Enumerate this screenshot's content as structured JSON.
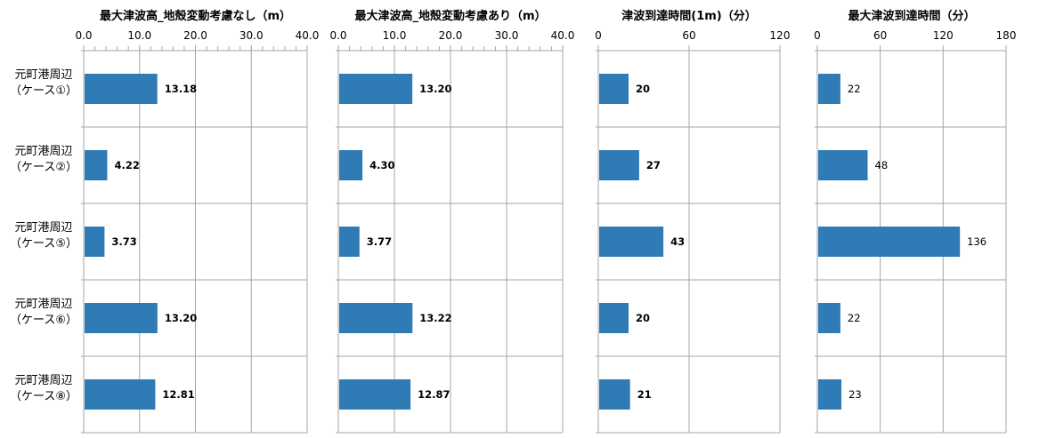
{
  "colors": {
    "bar": "#2f7bb6",
    "grid": "#a6a6a6",
    "minor_grid": "#d9d9d9",
    "text": "#000000"
  },
  "chart_data": [
    {
      "type": "bar",
      "orientation": "horizontal",
      "title": "最大津波高_地殻変動考慮なし（m）",
      "categories": [
        [
          "元町港周辺",
          "（ケース①）"
        ],
        [
          "元町港周辺",
          "（ケース②）"
        ],
        [
          "元町港周辺",
          "（ケース⑤）"
        ],
        [
          "元町港周辺",
          "（ケース⑥）"
        ],
        [
          "元町港周辺",
          "（ケース⑧）"
        ]
      ],
      "values": [
        13.18,
        4.22,
        3.73,
        13.2,
        12.81
      ],
      "value_labels": [
        "13.18",
        "4.22",
        "3.73",
        "13.20",
        "12.81"
      ],
      "xlim": [
        0,
        40
      ],
      "ticks": [
        0,
        10,
        20,
        30,
        40
      ],
      "tick_labels": [
        "0.0",
        "10.0",
        "20.0",
        "30.0",
        "40.0"
      ],
      "minor_ticks": true,
      "value_label_bold": true,
      "grid": true
    },
    {
      "type": "bar",
      "orientation": "horizontal",
      "title": "最大津波高_地殻変動考慮あり（m）",
      "values": [
        13.2,
        4.3,
        3.77,
        13.22,
        12.87
      ],
      "value_labels": [
        "13.20",
        "4.30",
        "3.77",
        "13.22",
        "12.87"
      ],
      "xlim": [
        0,
        40
      ],
      "ticks": [
        0,
        10,
        20,
        30,
        40
      ],
      "tick_labels": [
        "0.0",
        "10.0",
        "20.0",
        "30.0",
        "40.0"
      ],
      "minor_ticks": true,
      "value_label_bold": true,
      "grid": true
    },
    {
      "type": "bar",
      "orientation": "horizontal",
      "title": "津波到達時間(1m)（分）",
      "values": [
        20,
        27,
        43,
        20,
        21
      ],
      "value_labels": [
        "20",
        "27",
        "43",
        "20",
        "21"
      ],
      "xlim": [
        0,
        120
      ],
      "ticks": [
        0,
        60,
        120
      ],
      "tick_labels": [
        "0",
        "60",
        "120"
      ],
      "minor_ticks": false,
      "value_label_bold": true,
      "grid": true
    },
    {
      "type": "bar",
      "orientation": "horizontal",
      "title": "最大津波到達時間（分）",
      "values": [
        22,
        48,
        136,
        22,
        23
      ],
      "value_labels": [
        "22",
        "48",
        "136",
        "22",
        "23"
      ],
      "xlim": [
        0,
        180
      ],
      "ticks": [
        0,
        60,
        120,
        180
      ],
      "tick_labels": [
        "0",
        "60",
        "120",
        "180"
      ],
      "minor_ticks": false,
      "value_label_bold": false,
      "grid": true
    }
  ]
}
